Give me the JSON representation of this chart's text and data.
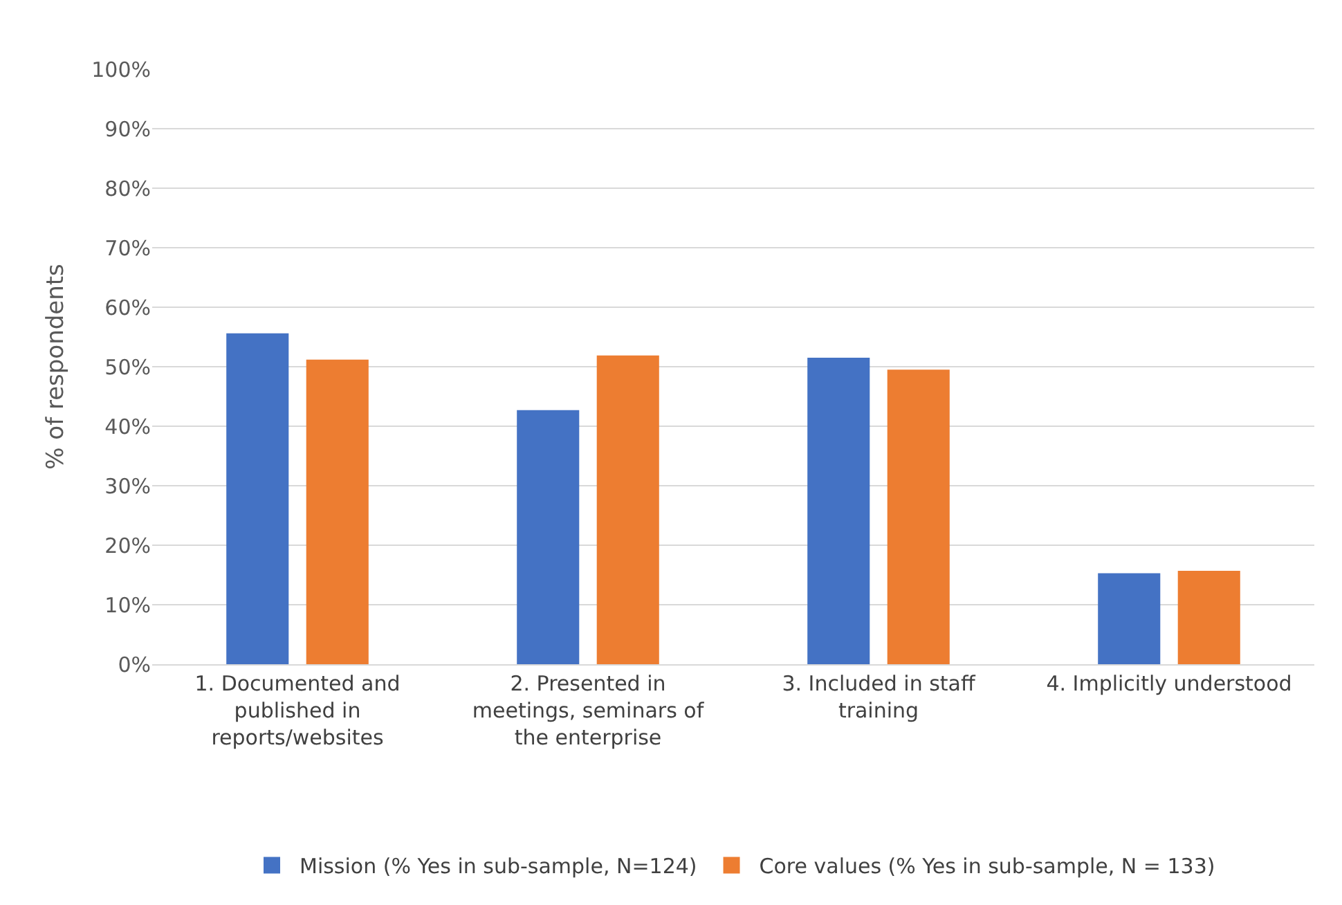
{
  "chart_data": {
    "type": "bar",
    "ylabel": "% of respondents",
    "categories": [
      "1. Documented and published in reports/websites",
      "2. Presented in meetings, seminars of the enterprise",
      "3. Included in staff training",
      "4. Implicitly understood"
    ],
    "series": [
      {
        "name": "Mission (% Yes in sub-sample, N=124)",
        "color": "#4472c4",
        "values": [
          55.6,
          42.7,
          51.5,
          15.3
        ]
      },
      {
        "name": "Core values (% Yes in sub-sample, N = 133)",
        "color": "#ed7d31",
        "values": [
          51.2,
          51.9,
          49.5,
          15.7
        ]
      }
    ],
    "ylim": [
      0,
      100
    ],
    "yticks": [
      {
        "value": 0,
        "label": "0%"
      },
      {
        "value": 10,
        "label": "10%"
      },
      {
        "value": 20,
        "label": "20%"
      },
      {
        "value": 30,
        "label": "30%"
      },
      {
        "value": 40,
        "label": "40%"
      },
      {
        "value": 50,
        "label": "50%"
      },
      {
        "value": 60,
        "label": "60%"
      },
      {
        "value": 70,
        "label": "70%"
      },
      {
        "value": 80,
        "label": "80%"
      },
      {
        "value": 90,
        "label": "90%"
      },
      {
        "value": 100,
        "label": "100%"
      }
    ],
    "grid": "y",
    "legend": "bottom"
  }
}
